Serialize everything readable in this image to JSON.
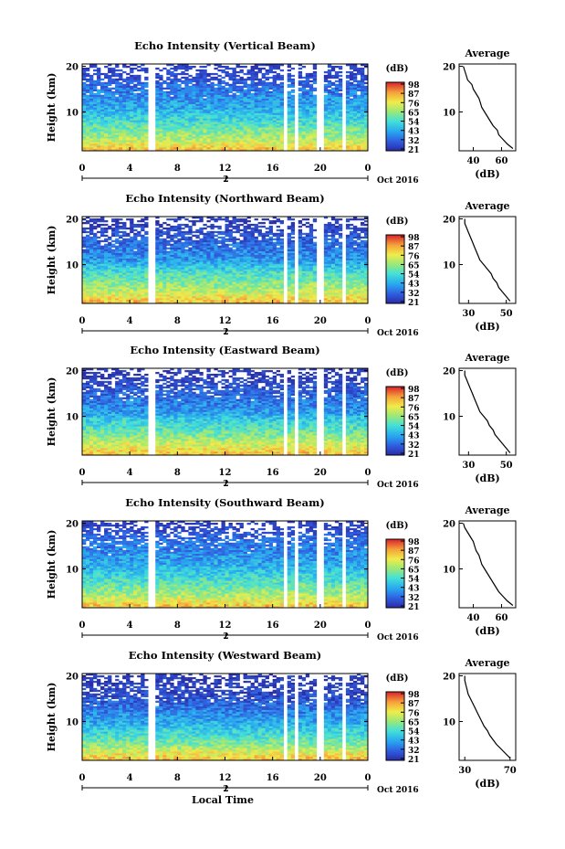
{
  "figure": {
    "x_axis_title": "Local Time",
    "date_label": "Oct 2016",
    "date_day_label": "2",
    "y_axis_title": "Height (km)",
    "colorbar_unit": "(dB)",
    "profile_title": "Average",
    "profile_xlabel": "(dB)"
  },
  "chart_data": [
    {
      "type": "heatmap",
      "title": "Echo Intensity (Vertical Beam)",
      "ylabel": "Height (km)",
      "xlabel": "Local Time",
      "x_ticks": [
        "0",
        "4",
        "8",
        "12",
        "16",
        "20",
        "0"
      ],
      "xlim": [
        0,
        24
      ],
      "y_ticks": [
        "20",
        "10"
      ],
      "ylim": [
        1.5,
        20.5
      ],
      "colorbar_ticks": [
        "98",
        "87",
        "76",
        "65",
        "54",
        "43",
        "32",
        "21"
      ],
      "colorbar_range": [
        21,
        98
      ],
      "data_gaps_hours": [
        [
          5.4,
          6.0
        ],
        [
          17.0,
          17.3
        ],
        [
          17.8,
          18.1
        ],
        [
          19.8,
          20.3
        ],
        [
          21.8,
          22.1
        ]
      ],
      "profile": {
        "title": "Average",
        "xlabel": "(dB)",
        "x_ticks": [
          "40",
          "60"
        ],
        "xlim": [
          30,
          70
        ],
        "y_ticks": [
          "20",
          "10"
        ],
        "height_km": [
          2,
          3,
          4,
          5,
          6,
          7,
          8,
          9,
          10,
          11,
          12,
          13,
          14,
          15,
          16,
          17,
          18,
          19,
          20
        ],
        "avg_db": [
          68,
          64,
          61,
          58,
          57,
          54,
          52,
          50,
          48,
          46,
          45,
          44,
          42,
          40,
          39,
          36,
          35,
          34,
          33
        ]
      }
    },
    {
      "type": "heatmap",
      "title": "Echo Intensity (Northward Beam)",
      "ylabel": "Height (km)",
      "x_ticks": [
        "0",
        "4",
        "8",
        "12",
        "16",
        "20",
        "0"
      ],
      "xlim": [
        0,
        24
      ],
      "y_ticks": [
        "20",
        "10"
      ],
      "ylim": [
        1.5,
        20.5
      ],
      "colorbar_ticks": [
        "98",
        "87",
        "76",
        "65",
        "54",
        "43",
        "32",
        "21"
      ],
      "colorbar_range": [
        21,
        98
      ],
      "data_gaps_hours": [
        [
          5.4,
          6.0
        ],
        [
          17.0,
          17.3
        ],
        [
          17.8,
          18.1
        ],
        [
          19.8,
          20.3
        ],
        [
          21.8,
          22.1
        ]
      ],
      "profile": {
        "title": "Average",
        "xlabel": "(dB)",
        "x_ticks": [
          "30",
          "50"
        ],
        "xlim": [
          25,
          55
        ],
        "y_ticks": [
          "20",
          "10"
        ],
        "height_km": [
          2,
          3,
          4,
          5,
          6,
          7,
          8,
          9,
          10,
          11,
          12,
          13,
          14,
          15,
          16,
          17,
          18,
          19,
          20
        ],
        "avg_db": [
          52,
          50,
          48,
          46,
          45,
          43,
          42,
          40,
          38,
          36,
          35,
          34,
          33,
          32,
          31,
          30,
          29,
          28,
          28
        ]
      }
    },
    {
      "type": "heatmap",
      "title": "Echo Intensity (Eastward Beam)",
      "ylabel": "Height (km)",
      "x_ticks": [
        "0",
        "4",
        "8",
        "12",
        "16",
        "20",
        "0"
      ],
      "xlim": [
        0,
        24
      ],
      "y_ticks": [
        "20",
        "10"
      ],
      "ylim": [
        1.5,
        20.5
      ],
      "colorbar_ticks": [
        "98",
        "87",
        "76",
        "65",
        "54",
        "43",
        "32",
        "21"
      ],
      "colorbar_range": [
        21,
        98
      ],
      "data_gaps_hours": [
        [
          5.4,
          6.0
        ],
        [
          17.0,
          17.3
        ],
        [
          17.8,
          18.1
        ],
        [
          19.8,
          20.3
        ],
        [
          21.8,
          22.1
        ]
      ],
      "profile": {
        "title": "Average",
        "xlabel": "(dB)",
        "x_ticks": [
          "30",
          "50"
        ],
        "xlim": [
          25,
          55
        ],
        "y_ticks": [
          "20",
          "10"
        ],
        "height_km": [
          2,
          3,
          4,
          5,
          6,
          7,
          8,
          9,
          10,
          11,
          12,
          13,
          14,
          15,
          16,
          17,
          18,
          19,
          20
        ],
        "avg_db": [
          52,
          50,
          48,
          46,
          44,
          43,
          41,
          40,
          38,
          36,
          35,
          34,
          33,
          32,
          31,
          30,
          29,
          28,
          28
        ]
      }
    },
    {
      "type": "heatmap",
      "title": "Echo Intensity (Southward Beam)",
      "ylabel": "Height (km)",
      "x_ticks": [
        "0",
        "4",
        "8",
        "12",
        "16",
        "20",
        "0"
      ],
      "xlim": [
        0,
        24
      ],
      "y_ticks": [
        "20",
        "10"
      ],
      "ylim": [
        1.5,
        20.5
      ],
      "colorbar_ticks": [
        "98",
        "87",
        "76",
        "65",
        "54",
        "43",
        "32",
        "21"
      ],
      "colorbar_range": [
        21,
        98
      ],
      "data_gaps_hours": [
        [
          5.4,
          6.0
        ],
        [
          17.0,
          17.3
        ],
        [
          17.8,
          18.1
        ],
        [
          19.8,
          20.3
        ],
        [
          21.8,
          22.1
        ]
      ],
      "profile": {
        "title": "Average",
        "xlabel": "(dB)",
        "x_ticks": [
          "40",
          "60"
        ],
        "xlim": [
          30,
          70
        ],
        "y_ticks": [
          "20",
          "10"
        ],
        "height_km": [
          2,
          3,
          4,
          5,
          6,
          7,
          8,
          9,
          10,
          11,
          12,
          13,
          14,
          15,
          16,
          17,
          18,
          19,
          20
        ],
        "avg_db": [
          68,
          64,
          61,
          58,
          56,
          54,
          52,
          50,
          48,
          46,
          45,
          44,
          42,
          41,
          40,
          38,
          36,
          34,
          33
        ]
      }
    },
    {
      "type": "heatmap",
      "title": "Echo Intensity (Westward Beam)",
      "ylabel": "Height (km)",
      "x_ticks": [
        "0",
        "4",
        "8",
        "12",
        "16",
        "20",
        "0"
      ],
      "xlim": [
        0,
        24
      ],
      "y_ticks": [
        "20",
        "10"
      ],
      "ylim": [
        1.5,
        20.5
      ],
      "colorbar_ticks": [
        "98",
        "87",
        "76",
        "65",
        "54",
        "43",
        "32",
        "21"
      ],
      "colorbar_range": [
        21,
        98
      ],
      "data_gaps_hours": [
        [
          5.4,
          6.0
        ],
        [
          17.0,
          17.3
        ],
        [
          17.8,
          18.1
        ],
        [
          19.8,
          20.3
        ],
        [
          21.8,
          22.1
        ]
      ],
      "profile": {
        "title": "Average",
        "xlabel": "(dB)",
        "x_ticks": [
          "30",
          "70"
        ],
        "xlim": [
          25,
          75
        ],
        "y_ticks": [
          "20",
          "10"
        ],
        "height_km": [
          2,
          3,
          4,
          5,
          6,
          7,
          8,
          9,
          10,
          11,
          12,
          13,
          14,
          15,
          16,
          17,
          18,
          19,
          20
        ],
        "avg_db": [
          70,
          66,
          62,
          58,
          55,
          52,
          50,
          47,
          45,
          43,
          41,
          39,
          37,
          35,
          33,
          32,
          31,
          30,
          30
        ]
      }
    }
  ]
}
